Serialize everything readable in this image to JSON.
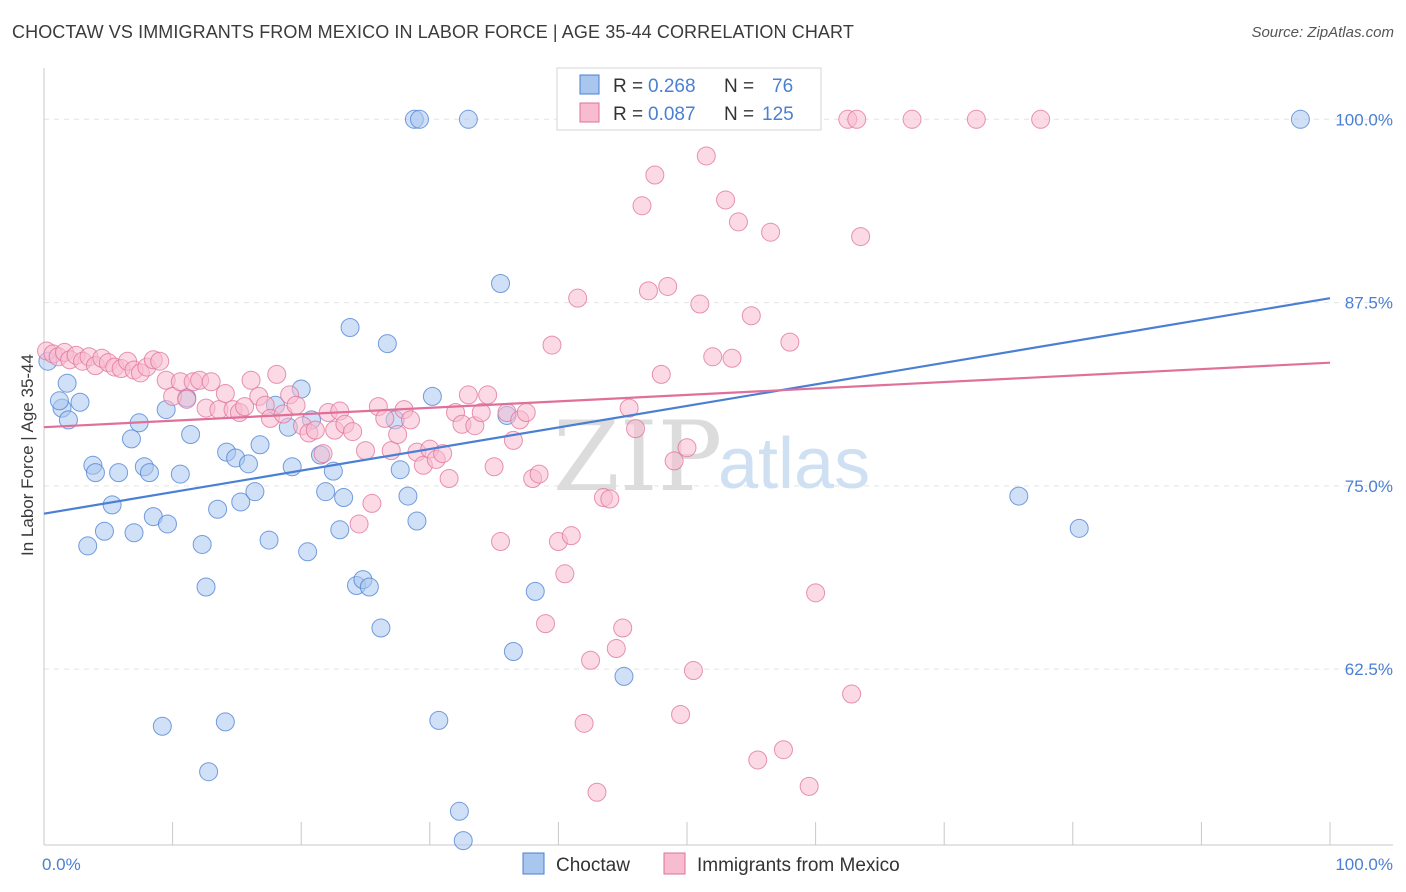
{
  "header": {
    "title": "CHOCTAW VS IMMIGRANTS FROM MEXICO IN LABOR FORCE | AGE 35-44 CORRELATION CHART",
    "source": "Source: ZipAtlas.com"
  },
  "watermark": {
    "part1": "ZIP",
    "part2": "atlas"
  },
  "chart_data": {
    "type": "scatter",
    "ylabel": "In Labor Force | Age 35-44",
    "xlim": [
      0,
      100
    ],
    "ylim": [
      50.5,
      103.5
    ],
    "x_tick_labels": {
      "left": "0.0%",
      "right": "100.0%"
    },
    "y_ticks": [
      {
        "value": 100,
        "label": "100.0%"
      },
      {
        "value": 87.5,
        "label": "87.5%"
      },
      {
        "value": 75,
        "label": "75.0%"
      },
      {
        "value": 62.5,
        "label": "62.5%"
      }
    ],
    "grid": true,
    "legend_position": "top-center",
    "legend": [
      {
        "r_label": "R =",
        "r": "0.268",
        "n_label": "N =",
        "n": "76"
      },
      {
        "r_label": "R =",
        "r": "0.087",
        "n_label": "N =",
        "n": "125"
      }
    ],
    "series": [
      {
        "name": "Choctaw",
        "color": "#4a7fd4",
        "fill": "#a9c6ee",
        "trend": {
          "x0": 0,
          "y0": 73.1,
          "x1": 100,
          "y1": 87.8
        },
        "points": [
          [
            0.3,
            83.5
          ],
          [
            1.8,
            82.0
          ],
          [
            1.4,
            80.3
          ],
          [
            1.9,
            79.5
          ],
          [
            2.8,
            80.7
          ],
          [
            1.2,
            80.8
          ],
          [
            3.8,
            76.4
          ],
          [
            4.0,
            75.9
          ],
          [
            5.3,
            73.7
          ],
          [
            4.7,
            71.9
          ],
          [
            3.4,
            70.9
          ],
          [
            5.8,
            75.9
          ],
          [
            7.0,
            71.8
          ],
          [
            6.8,
            78.2
          ],
          [
            7.4,
            79.3
          ],
          [
            7.8,
            76.3
          ],
          [
            8.2,
            75.9
          ],
          [
            8.5,
            72.9
          ],
          [
            9.6,
            72.4
          ],
          [
            9.5,
            80.2
          ],
          [
            10.6,
            75.8
          ],
          [
            11.1,
            81.0
          ],
          [
            11.4,
            78.5
          ],
          [
            12.3,
            71.0
          ],
          [
            12.6,
            68.1
          ],
          [
            13.5,
            73.4
          ],
          [
            14.2,
            77.3
          ],
          [
            14.9,
            76.9
          ],
          [
            15.3,
            73.9
          ],
          [
            15.9,
            76.5
          ],
          [
            16.4,
            74.6
          ],
          [
            16.8,
            77.8
          ],
          [
            17.5,
            71.3
          ],
          [
            18.0,
            80.5
          ],
          [
            19.0,
            79.0
          ],
          [
            19.3,
            76.3
          ],
          [
            20.0,
            81.6
          ],
          [
            20.5,
            70.5
          ],
          [
            20.8,
            79.5
          ],
          [
            21.5,
            77.1
          ],
          [
            21.9,
            74.6
          ],
          [
            22.5,
            76.0
          ],
          [
            23.0,
            72.0
          ],
          [
            23.3,
            74.2
          ],
          [
            23.8,
            85.8
          ],
          [
            24.3,
            68.2
          ],
          [
            24.8,
            68.6
          ],
          [
            25.3,
            68.1
          ],
          [
            26.2,
            65.3
          ],
          [
            26.7,
            84.7
          ],
          [
            27.3,
            79.5
          ],
          [
            27.7,
            76.1
          ],
          [
            28.3,
            74.3
          ],
          [
            29.0,
            72.6
          ],
          [
            30.2,
            81.1
          ],
          [
            30.7,
            59.0
          ],
          [
            32.3,
            52.8
          ],
          [
            32.6,
            50.8
          ],
          [
            28.8,
            100.0
          ],
          [
            29.2,
            100.0
          ],
          [
            33.0,
            100.0
          ],
          [
            35.5,
            88.8
          ],
          [
            36.0,
            79.8
          ],
          [
            36.5,
            63.7
          ],
          [
            38.2,
            67.8
          ],
          [
            43.3,
            100.0
          ],
          [
            45.5,
            100.0
          ],
          [
            47.5,
            100.0
          ],
          [
            49.2,
            100.0
          ],
          [
            9.2,
            58.6
          ],
          [
            14.1,
            58.9
          ],
          [
            12.8,
            55.5
          ],
          [
            45.1,
            62.0
          ],
          [
            75.8,
            74.3
          ],
          [
            80.5,
            72.1
          ],
          [
            97.7,
            100.0
          ]
        ]
      },
      {
        "name": "Immigrants from Mexico",
        "color": "#e0709a",
        "fill": "#f7bcd0",
        "trend": {
          "x0": 0,
          "y0": 79.0,
          "x1": 100,
          "y1": 83.4
        },
        "points": [
          [
            0.2,
            84.2
          ],
          [
            0.7,
            84.0
          ],
          [
            1.1,
            83.8
          ],
          [
            1.6,
            84.1
          ],
          [
            2.0,
            83.6
          ],
          [
            2.5,
            83.9
          ],
          [
            3.0,
            83.5
          ],
          [
            3.5,
            83.8
          ],
          [
            4.0,
            83.2
          ],
          [
            4.5,
            83.7
          ],
          [
            5.0,
            83.4
          ],
          [
            5.5,
            83.1
          ],
          [
            6.0,
            83.0
          ],
          [
            6.5,
            83.5
          ],
          [
            7.0,
            82.9
          ],
          [
            7.5,
            82.7
          ],
          [
            8.0,
            83.1
          ],
          [
            8.5,
            83.6
          ],
          [
            9.0,
            83.5
          ],
          [
            9.5,
            82.2
          ],
          [
            10.0,
            81.1
          ],
          [
            10.6,
            82.1
          ],
          [
            11.1,
            80.9
          ],
          [
            11.6,
            82.1
          ],
          [
            12.1,
            82.2
          ],
          [
            12.6,
            80.3
          ],
          [
            13.0,
            82.1
          ],
          [
            13.6,
            80.2
          ],
          [
            14.1,
            81.3
          ],
          [
            14.7,
            80.2
          ],
          [
            15.2,
            80.0
          ],
          [
            15.6,
            80.4
          ],
          [
            16.1,
            82.2
          ],
          [
            16.7,
            81.1
          ],
          [
            17.2,
            80.5
          ],
          [
            17.6,
            79.6
          ],
          [
            18.1,
            82.6
          ],
          [
            18.6,
            79.9
          ],
          [
            19.1,
            81.2
          ],
          [
            19.6,
            80.5
          ],
          [
            20.1,
            79.1
          ],
          [
            20.6,
            78.6
          ],
          [
            21.1,
            78.8
          ],
          [
            21.7,
            77.2
          ],
          [
            22.1,
            80.0
          ],
          [
            22.6,
            78.8
          ],
          [
            23.0,
            80.1
          ],
          [
            23.4,
            79.2
          ],
          [
            24.0,
            78.7
          ],
          [
            24.5,
            72.4
          ],
          [
            25.0,
            77.4
          ],
          [
            25.5,
            73.8
          ],
          [
            26.0,
            80.4
          ],
          [
            26.5,
            79.6
          ],
          [
            27.0,
            77.4
          ],
          [
            27.5,
            78.5
          ],
          [
            28.0,
            80.2
          ],
          [
            28.5,
            79.5
          ],
          [
            29.0,
            77.3
          ],
          [
            29.5,
            76.4
          ],
          [
            30.0,
            77.5
          ],
          [
            30.5,
            76.8
          ],
          [
            31.0,
            77.2
          ],
          [
            31.5,
            75.5
          ],
          [
            32.0,
            80.0
          ],
          [
            32.5,
            79.2
          ],
          [
            33.0,
            81.2
          ],
          [
            33.5,
            79.1
          ],
          [
            34.0,
            80.0
          ],
          [
            34.5,
            81.2
          ],
          [
            35.0,
            76.3
          ],
          [
            35.5,
            71.2
          ],
          [
            36.0,
            80.0
          ],
          [
            36.5,
            78.1
          ],
          [
            37.0,
            79.5
          ],
          [
            37.5,
            80.0
          ],
          [
            38.0,
            75.5
          ],
          [
            38.5,
            75.8
          ],
          [
            39.0,
            65.6
          ],
          [
            39.5,
            84.6
          ],
          [
            40.0,
            71.2
          ],
          [
            40.5,
            69.0
          ],
          [
            41.0,
            71.6
          ],
          [
            41.5,
            87.8
          ],
          [
            42.0,
            58.8
          ],
          [
            42.5,
            63.1
          ],
          [
            43.0,
            54.1
          ],
          [
            43.5,
            74.2
          ],
          [
            44.0,
            74.1
          ],
          [
            44.5,
            63.9
          ],
          [
            45.0,
            65.3
          ],
          [
            45.5,
            80.3
          ],
          [
            46.0,
            78.9
          ],
          [
            46.5,
            94.1
          ],
          [
            47.0,
            88.3
          ],
          [
            47.5,
            96.2
          ],
          [
            48.0,
            82.6
          ],
          [
            48.5,
            88.6
          ],
          [
            49.0,
            76.7
          ],
          [
            49.5,
            59.4
          ],
          [
            50.0,
            77.6
          ],
          [
            50.5,
            62.4
          ],
          [
            51.0,
            87.4
          ],
          [
            51.5,
            97.5
          ],
          [
            52.0,
            83.8
          ],
          [
            52.5,
            100.0
          ],
          [
            53.0,
            94.5
          ],
          [
            53.5,
            83.7
          ],
          [
            54.0,
            93.0
          ],
          [
            54.5,
            100.0
          ],
          [
            55.0,
            86.6
          ],
          [
            55.5,
            56.3
          ],
          [
            56.5,
            92.3
          ],
          [
            57.5,
            57.0
          ],
          [
            58.0,
            84.8
          ],
          [
            58.5,
            100.0
          ],
          [
            59.5,
            54.5
          ],
          [
            60.0,
            67.7
          ],
          [
            62.5,
            100.0
          ],
          [
            62.8,
            60.8
          ],
          [
            63.2,
            100.0
          ],
          [
            63.5,
            92.0
          ],
          [
            67.5,
            100.0
          ],
          [
            72.5,
            100.0
          ],
          [
            77.5,
            100.0
          ]
        ]
      }
    ]
  }
}
